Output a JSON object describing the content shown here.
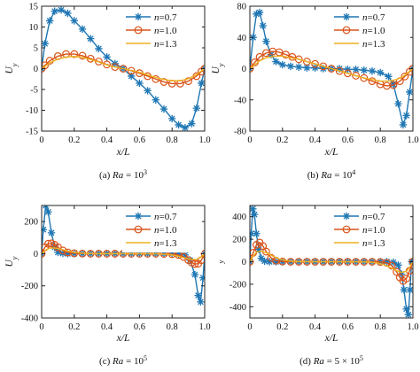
{
  "legend": {
    "prefix": "n",
    "labels": [
      "=0.7",
      "=1.0",
      "=1.3"
    ]
  },
  "colors": {
    "n07": "#1f77b4",
    "n10": "#d95319",
    "n13": "#edb120"
  },
  "chart_data": [
    {
      "type": "line",
      "caption": {
        "prefix": "(a) ",
        "var": "Ra",
        "eq": " = 10",
        "exp": "3"
      },
      "xlabel_var": "x",
      "xlabel_rest": "/L",
      "ylabel_var": "U",
      "ylabel_sub": "y",
      "xlim": [
        0,
        1
      ],
      "ylim": [
        -15,
        15
      ],
      "xticks": [
        "0",
        "0.2",
        "0.4",
        "0.6",
        "0.8",
        "1.0"
      ],
      "xtick_values": [
        0,
        0.2,
        0.4,
        0.6,
        0.8,
        1.0
      ],
      "yticks": [
        "-15",
        "-10",
        "-5",
        "0",
        "5",
        "10",
        "15"
      ],
      "ytick_values": [
        -15,
        -10,
        -5,
        0,
        5,
        10,
        15
      ],
      "series": [
        {
          "name": "n=0.7",
          "marker": "asterisk",
          "x": [
            0,
            0.02,
            0.05,
            0.08,
            0.12,
            0.16,
            0.2,
            0.25,
            0.3,
            0.35,
            0.4,
            0.45,
            0.5,
            0.55,
            0.6,
            0.65,
            0.7,
            0.75,
            0.8,
            0.84,
            0.88,
            0.92,
            0.95,
            0.98,
            1.0
          ],
          "y": [
            0,
            6,
            11.5,
            13.8,
            14.1,
            13.3,
            11.5,
            9.5,
            7.2,
            4.8,
            2.8,
            1.2,
            0.0,
            -1.8,
            -3.5,
            -5.3,
            -7.5,
            -9.7,
            -12.0,
            -13.5,
            -14.2,
            -13.2,
            -9.5,
            -3.5,
            0
          ]
        },
        {
          "name": "n=1.0",
          "marker": "circle",
          "x": [
            0,
            0.02,
            0.05,
            0.1,
            0.15,
            0.2,
            0.25,
            0.3,
            0.35,
            0.4,
            0.45,
            0.5,
            0.55,
            0.6,
            0.65,
            0.7,
            0.75,
            0.8,
            0.85,
            0.9,
            0.95,
            0.98,
            1.0
          ],
          "y": [
            0,
            0.8,
            1.9,
            3.0,
            3.5,
            3.5,
            3.1,
            2.4,
            1.7,
            1.0,
            0.4,
            0.0,
            -0.5,
            -1.1,
            -1.8,
            -2.5,
            -3.2,
            -3.6,
            -3.6,
            -3.0,
            -1.8,
            -0.7,
            0
          ]
        },
        {
          "name": "n=1.3",
          "marker": "none",
          "x": [
            0,
            0.05,
            0.1,
            0.15,
            0.2,
            0.25,
            0.3,
            0.35,
            0.4,
            0.45,
            0.5,
            0.55,
            0.6,
            0.65,
            0.7,
            0.75,
            0.8,
            0.85,
            0.9,
            0.95,
            1.0
          ],
          "y": [
            0,
            1.4,
            2.3,
            2.8,
            2.9,
            2.7,
            2.2,
            1.6,
            0.9,
            0.4,
            0.0,
            -0.4,
            -0.9,
            -1.5,
            -2.1,
            -2.6,
            -2.9,
            -2.9,
            -2.4,
            -1.4,
            0
          ]
        }
      ]
    },
    {
      "type": "line",
      "caption": {
        "prefix": "(b) ",
        "var": "Ra",
        "eq": " = 10",
        "exp": "4"
      },
      "xlabel_var": "x",
      "xlabel_rest": "/L",
      "ylabel_var": "U",
      "ylabel_sub": "y",
      "xlim": [
        0,
        1
      ],
      "ylim": [
        -80,
        80
      ],
      "xticks": [
        "0",
        "0.2",
        "0.4",
        "0.6",
        "0.8",
        "1.0"
      ],
      "xtick_values": [
        0,
        0.2,
        0.4,
        0.6,
        0.8,
        1.0
      ],
      "yticks": [
        "-80",
        "-40",
        "0",
        "40",
        "80"
      ],
      "ytick_values": [
        -80,
        -40,
        0,
        40,
        80
      ],
      "series": [
        {
          "name": "n=0.7",
          "marker": "asterisk",
          "x": [
            0,
            0.02,
            0.04,
            0.06,
            0.08,
            0.1,
            0.13,
            0.16,
            0.2,
            0.25,
            0.3,
            0.35,
            0.4,
            0.45,
            0.5,
            0.55,
            0.6,
            0.65,
            0.7,
            0.75,
            0.8,
            0.85,
            0.88,
            0.91,
            0.94,
            0.96,
            0.98,
            1.0
          ],
          "y": [
            0,
            40,
            70,
            72,
            55,
            35,
            18,
            9,
            5,
            3,
            2,
            1,
            1,
            0,
            0,
            0,
            -1,
            -1,
            -2,
            -3,
            -5,
            -10,
            -20,
            -45,
            -72,
            -60,
            -30,
            0
          ]
        },
        {
          "name": "n=1.0",
          "marker": "circle",
          "x": [
            0,
            0.03,
            0.06,
            0.1,
            0.14,
            0.18,
            0.22,
            0.26,
            0.3,
            0.35,
            0.4,
            0.45,
            0.5,
            0.55,
            0.6,
            0.65,
            0.7,
            0.75,
            0.8,
            0.84,
            0.88,
            0.92,
            0.95,
            0.98,
            1.0
          ],
          "y": [
            0,
            8,
            15,
            20,
            22,
            21,
            18,
            15,
            12,
            9,
            6,
            3,
            0,
            -3,
            -6,
            -9,
            -12,
            -16,
            -20,
            -22,
            -21,
            -16,
            -10,
            -4,
            0
          ]
        },
        {
          "name": "n=1.3",
          "marker": "none",
          "x": [
            0,
            0.03,
            0.06,
            0.1,
            0.15,
            0.2,
            0.25,
            0.3,
            0.35,
            0.4,
            0.45,
            0.5,
            0.55,
            0.6,
            0.65,
            0.7,
            0.75,
            0.8,
            0.85,
            0.9,
            0.94,
            0.97,
            1.0
          ],
          "y": [
            0,
            5,
            10,
            14,
            16,
            16,
            14,
            12,
            9,
            6,
            3,
            0,
            -3,
            -6,
            -9,
            -12,
            -14,
            -16,
            -16,
            -14,
            -10,
            -5,
            0
          ]
        }
      ]
    },
    {
      "type": "line",
      "caption": {
        "prefix": "(c) ",
        "var": "Ra",
        "eq": " = 10",
        "exp": "5"
      },
      "xlabel_var": "x",
      "xlabel_rest": "/L",
      "ylabel_var": "U",
      "ylabel_sub": "y",
      "xlim": [
        0,
        1
      ],
      "ylim": [
        -400,
        300
      ],
      "xticks": [
        "0",
        "0.2",
        "0.4",
        "0.6",
        "0.8",
        "1.0"
      ],
      "xtick_values": [
        0,
        0.2,
        0.4,
        0.6,
        0.8,
        1.0
      ],
      "yticks": [
        "-400",
        "-200",
        "0",
        "200"
      ],
      "ytick_values": [
        -400,
        -200,
        0,
        200
      ],
      "series": [
        {
          "name": "n=0.7",
          "marker": "asterisk",
          "x": [
            0,
            0.01,
            0.025,
            0.04,
            0.06,
            0.08,
            0.1,
            0.13,
            0.16,
            0.2,
            0.25,
            0.3,
            0.35,
            0.4,
            0.45,
            0.5,
            0.55,
            0.6,
            0.65,
            0.7,
            0.75,
            0.8,
            0.84,
            0.88,
            0.91,
            0.94,
            0.96,
            0.975,
            0.99,
            1.0
          ],
          "y": [
            0,
            150,
            300,
            260,
            130,
            40,
            8,
            2,
            0,
            0,
            0,
            0,
            0,
            0,
            0,
            0,
            0,
            0,
            0,
            0,
            0,
            0,
            -2,
            -8,
            -40,
            -130,
            -260,
            -300,
            -150,
            0
          ]
        },
        {
          "name": "n=1.0",
          "marker": "circle",
          "x": [
            0,
            0.02,
            0.04,
            0.06,
            0.08,
            0.1,
            0.13,
            0.16,
            0.2,
            0.25,
            0.3,
            0.35,
            0.4,
            0.45,
            0.5,
            0.55,
            0.6,
            0.65,
            0.7,
            0.75,
            0.8,
            0.84,
            0.87,
            0.9,
            0.92,
            0.94,
            0.96,
            0.98,
            1.0
          ],
          "y": [
            0,
            40,
            62,
            64,
            55,
            40,
            20,
            8,
            3,
            1,
            0,
            0,
            0,
            0,
            0,
            0,
            0,
            0,
            0,
            -1,
            -3,
            -8,
            -20,
            -40,
            -55,
            -64,
            -62,
            -40,
            0
          ]
        },
        {
          "name": "n=1.3",
          "marker": "none",
          "x": [
            0,
            0.02,
            0.05,
            0.08,
            0.12,
            0.16,
            0.2,
            0.25,
            0.3,
            0.35,
            0.4,
            0.45,
            0.5,
            0.55,
            0.6,
            0.65,
            0.7,
            0.75,
            0.8,
            0.84,
            0.88,
            0.92,
            0.95,
            0.98,
            1.0
          ],
          "y": [
            0,
            20,
            35,
            36,
            28,
            16,
            8,
            3,
            1,
            0,
            0,
            0,
            0,
            0,
            0,
            0,
            -1,
            -3,
            -8,
            -16,
            -28,
            -36,
            -35,
            -20,
            0
          ]
        }
      ]
    },
    {
      "type": "line",
      "caption": {
        "prefix": "(d) ",
        "var": "Ra",
        "eq": " = 5 × 10",
        "exp": "5"
      },
      "xlabel_var": "x",
      "xlabel_rest": "/L",
      "ylabel_var": "",
      "ylabel_sub": "y",
      "xlim": [
        0,
        1
      ],
      "ylim": [
        -500,
        500
      ],
      "xticks": [
        "0",
        "0.2",
        "0.4",
        "0.6",
        "0.8",
        "1.0"
      ],
      "xtick_values": [
        0,
        0.2,
        0.4,
        0.6,
        0.8,
        1.0
      ],
      "yticks": [
        "-400",
        "-200",
        "0",
        "200",
        "400"
      ],
      "ytick_values": [
        -400,
        -200,
        0,
        200,
        400
      ],
      "series": [
        {
          "name": "n=0.7",
          "marker": "asterisk",
          "x": [
            0,
            0.008,
            0.018,
            0.028,
            0.04,
            0.055,
            0.07,
            0.09,
            0.12,
            0.16,
            0.2,
            0.25,
            0.3,
            0.35,
            0.4,
            0.45,
            0.5,
            0.55,
            0.6,
            0.65,
            0.7,
            0.75,
            0.8,
            0.84,
            0.88,
            0.91,
            0.93,
            0.945,
            0.96,
            0.972,
            0.982,
            0.992,
            1.0
          ],
          "y": [
            0,
            250,
            470,
            420,
            250,
            110,
            30,
            5,
            0,
            0,
            0,
            0,
            0,
            0,
            0,
            0,
            0,
            0,
            0,
            0,
            0,
            0,
            0,
            0,
            -5,
            -30,
            -110,
            -250,
            -420,
            -470,
            -250,
            0,
            0
          ]
        },
        {
          "name": "n=1.0",
          "marker": "circle",
          "x": [
            0,
            0.02,
            0.04,
            0.06,
            0.08,
            0.1,
            0.13,
            0.16,
            0.2,
            0.25,
            0.3,
            0.35,
            0.4,
            0.45,
            0.5,
            0.55,
            0.6,
            0.65,
            0.7,
            0.75,
            0.8,
            0.84,
            0.87,
            0.9,
            0.92,
            0.94,
            0.96,
            0.98,
            1.0
          ],
          "y": [
            0,
            80,
            150,
            170,
            140,
            90,
            35,
            10,
            2,
            0,
            0,
            0,
            0,
            0,
            0,
            0,
            0,
            0,
            0,
            0,
            -2,
            -10,
            -35,
            -90,
            -140,
            -170,
            -150,
            -80,
            0
          ]
        },
        {
          "name": "n=1.3",
          "marker": "none",
          "x": [
            0,
            0.02,
            0.04,
            0.07,
            0.1,
            0.14,
            0.18,
            0.22,
            0.27,
            0.32,
            0.4,
            0.5,
            0.6,
            0.68,
            0.73,
            0.78,
            0.82,
            0.86,
            0.9,
            0.93,
            0.96,
            0.98,
            1.0
          ],
          "y": [
            0,
            50,
            85,
            95,
            80,
            50,
            25,
            10,
            3,
            1,
            0,
            0,
            0,
            -1,
            -3,
            -10,
            -25,
            -50,
            -80,
            -95,
            -85,
            -50,
            0
          ]
        }
      ]
    }
  ]
}
